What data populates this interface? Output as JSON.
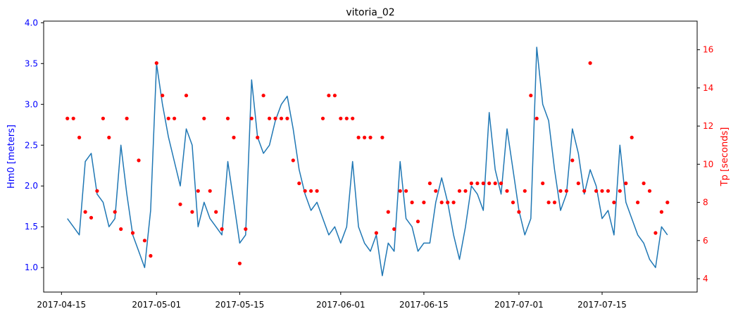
{
  "chart_data": {
    "type": "line",
    "title": "vitoria_02",
    "xlabel": "",
    "x_tick_labels": [
      "2017-04-15",
      "2017-05-01",
      "2017-05-15",
      "2017-06-01",
      "2017-06-15",
      "2017-07-01",
      "2017-07-15"
    ],
    "xlim": [
      "2017-04-12",
      "2017-07-31"
    ],
    "left_axis": {
      "label": "Hm0 [meters]",
      "color": "#0000ff",
      "ylim": [
        0.7,
        4.02
      ],
      "ticks": [
        "1.0",
        "1.5",
        "2.0",
        "2.5",
        "3.0",
        "3.5",
        "4.0"
      ]
    },
    "right_axis": {
      "label": "Tp [seconds]",
      "color": "#ff0000",
      "ylim": [
        3.3,
        17.5
      ],
      "ticks": [
        "4",
        "6",
        "8",
        "10",
        "12",
        "14",
        "16"
      ]
    },
    "series": [
      {
        "axis": "left",
        "style": "line",
        "color": "#1f77b4",
        "x": [
          "2017-04-16",
          "2017-04-17",
          "2017-04-18",
          "2017-04-19",
          "2017-04-20",
          "2017-04-21",
          "2017-04-22",
          "2017-04-23",
          "2017-04-24",
          "2017-04-25",
          "2017-04-26",
          "2017-04-27",
          "2017-04-28",
          "2017-04-29",
          "2017-04-30",
          "2017-05-01",
          "2017-05-02",
          "2017-05-03",
          "2017-05-04",
          "2017-05-05",
          "2017-05-06",
          "2017-05-07",
          "2017-05-08",
          "2017-05-09",
          "2017-05-10",
          "2017-05-11",
          "2017-05-12",
          "2017-05-13",
          "2017-05-14",
          "2017-05-15",
          "2017-05-16",
          "2017-05-17",
          "2017-05-18",
          "2017-05-19",
          "2017-05-20",
          "2017-05-21",
          "2017-05-22",
          "2017-05-23",
          "2017-05-24",
          "2017-05-25",
          "2017-05-26",
          "2017-05-27",
          "2017-05-28",
          "2017-05-29",
          "2017-05-30",
          "2017-05-31",
          "2017-06-01",
          "2017-06-02",
          "2017-06-03",
          "2017-06-04",
          "2017-06-05",
          "2017-06-06",
          "2017-06-07",
          "2017-06-08",
          "2017-06-09",
          "2017-06-10",
          "2017-06-11",
          "2017-06-12",
          "2017-06-13",
          "2017-06-14",
          "2017-06-15",
          "2017-06-16",
          "2017-06-17",
          "2017-06-18",
          "2017-06-19",
          "2017-06-20",
          "2017-06-21",
          "2017-06-22",
          "2017-06-23",
          "2017-06-24",
          "2017-06-25",
          "2017-06-26",
          "2017-06-27",
          "2017-06-28",
          "2017-06-29",
          "2017-06-30",
          "2017-07-01",
          "2017-07-02",
          "2017-07-03",
          "2017-07-04",
          "2017-07-05",
          "2017-07-06",
          "2017-07-07",
          "2017-07-08",
          "2017-07-09",
          "2017-07-10",
          "2017-07-11",
          "2017-07-12",
          "2017-07-13",
          "2017-07-14",
          "2017-07-15",
          "2017-07-16",
          "2017-07-17",
          "2017-07-18",
          "2017-07-19",
          "2017-07-20",
          "2017-07-21",
          "2017-07-22",
          "2017-07-23",
          "2017-07-24",
          "2017-07-25",
          "2017-07-26"
        ],
        "values": [
          1.6,
          1.5,
          1.4,
          2.3,
          2.4,
          1.9,
          1.8,
          1.5,
          1.6,
          2.5,
          1.9,
          1.4,
          1.2,
          1.0,
          1.7,
          3.5,
          3.0,
          2.6,
          2.3,
          2.0,
          2.7,
          2.5,
          1.5,
          1.8,
          1.6,
          1.5,
          1.4,
          2.3,
          1.8,
          1.3,
          1.4,
          3.3,
          2.6,
          2.4,
          2.5,
          2.8,
          3.0,
          3.1,
          2.7,
          2.2,
          1.9,
          1.7,
          1.8,
          1.6,
          1.4,
          1.5,
          1.3,
          1.5,
          2.3,
          1.5,
          1.3,
          1.2,
          1.4,
          0.9,
          1.3,
          1.2,
          2.3,
          1.6,
          1.5,
          1.2,
          1.3,
          1.3,
          1.8,
          2.1,
          1.8,
          1.4,
          1.1,
          1.5,
          2.0,
          1.9,
          1.7,
          2.9,
          2.2,
          1.9,
          2.7,
          2.2,
          1.7,
          1.4,
          1.6,
          3.7,
          3.0,
          2.8,
          2.2,
          1.7,
          1.9,
          2.7,
          2.4,
          1.9,
          2.2,
          2.0,
          1.6,
          1.7,
          1.4,
          2.5,
          1.8,
          1.6,
          1.4,
          1.3,
          1.1,
          1.0,
          1.5,
          1.4
        ]
      },
      {
        "axis": "right",
        "style": "scatter",
        "color": "#ff0000",
        "x": [
          "2017-04-16",
          "2017-04-17",
          "2017-04-18",
          "2017-04-19",
          "2017-04-20",
          "2017-04-21",
          "2017-04-22",
          "2017-04-23",
          "2017-04-24",
          "2017-04-25",
          "2017-04-26",
          "2017-04-27",
          "2017-04-28",
          "2017-04-29",
          "2017-04-30",
          "2017-05-01",
          "2017-05-02",
          "2017-05-03",
          "2017-05-04",
          "2017-05-05",
          "2017-05-06",
          "2017-05-07",
          "2017-05-08",
          "2017-05-09",
          "2017-05-10",
          "2017-05-11",
          "2017-05-12",
          "2017-05-13",
          "2017-05-14",
          "2017-05-15",
          "2017-05-16",
          "2017-05-17",
          "2017-05-18",
          "2017-05-19",
          "2017-05-20",
          "2017-05-21",
          "2017-05-22",
          "2017-05-23",
          "2017-05-24",
          "2017-05-25",
          "2017-05-26",
          "2017-05-27",
          "2017-05-28",
          "2017-05-29",
          "2017-05-30",
          "2017-05-31",
          "2017-06-01",
          "2017-06-02",
          "2017-06-03",
          "2017-06-04",
          "2017-06-05",
          "2017-06-06",
          "2017-06-07",
          "2017-06-08",
          "2017-06-09",
          "2017-06-10",
          "2017-06-11",
          "2017-06-12",
          "2017-06-13",
          "2017-06-14",
          "2017-06-15",
          "2017-06-16",
          "2017-06-17",
          "2017-06-18",
          "2017-06-19",
          "2017-06-20",
          "2017-06-21",
          "2017-06-22",
          "2017-06-23",
          "2017-06-24",
          "2017-06-25",
          "2017-06-26",
          "2017-06-27",
          "2017-06-28",
          "2017-06-29",
          "2017-06-30",
          "2017-07-01",
          "2017-07-02",
          "2017-07-03",
          "2017-07-04",
          "2017-07-05",
          "2017-07-06",
          "2017-07-07",
          "2017-07-08",
          "2017-07-09",
          "2017-07-10",
          "2017-07-11",
          "2017-07-12",
          "2017-07-13",
          "2017-07-14",
          "2017-07-15",
          "2017-07-16",
          "2017-07-17",
          "2017-07-18",
          "2017-07-19",
          "2017-07-20",
          "2017-07-21",
          "2017-07-22",
          "2017-07-23",
          "2017-07-24",
          "2017-07-25",
          "2017-07-26"
        ],
        "values": [
          12.4,
          12.4,
          11.4,
          7.5,
          7.2,
          8.6,
          12.4,
          11.4,
          7.5,
          6.6,
          12.4,
          6.4,
          10.2,
          6.0,
          5.2,
          15.3,
          13.6,
          12.4,
          12.4,
          7.9,
          13.6,
          7.5,
          8.6,
          12.4,
          8.6,
          7.5,
          6.6,
          12.4,
          11.4,
          4.8,
          6.6,
          12.4,
          11.4,
          13.6,
          12.4,
          12.4,
          12.4,
          12.4,
          10.2,
          9.0,
          8.6,
          8.6,
          8.6,
          12.4,
          13.6,
          13.6,
          12.4,
          12.4,
          12.4,
          11.4,
          11.4,
          11.4,
          6.4,
          11.4,
          7.5,
          6.6,
          8.6,
          8.6,
          8.0,
          7.0,
          8.0,
          9.0,
          8.6,
          8.0,
          8.0,
          8.0,
          8.6,
          8.6,
          9.0,
          9.0,
          9.0,
          9.0,
          9.0,
          9.0,
          8.6,
          8.0,
          7.5,
          8.6,
          13.6,
          12.4,
          9.0,
          8.0,
          8.0,
          8.6,
          8.6,
          10.2,
          9.0,
          8.6,
          15.3,
          8.6,
          8.6,
          8.6,
          8.0,
          8.6,
          9.0,
          11.4,
          8.0,
          9.0,
          8.6,
          6.4,
          7.5,
          8.0
        ]
      }
    ],
    "grid": false,
    "legend": "none"
  }
}
